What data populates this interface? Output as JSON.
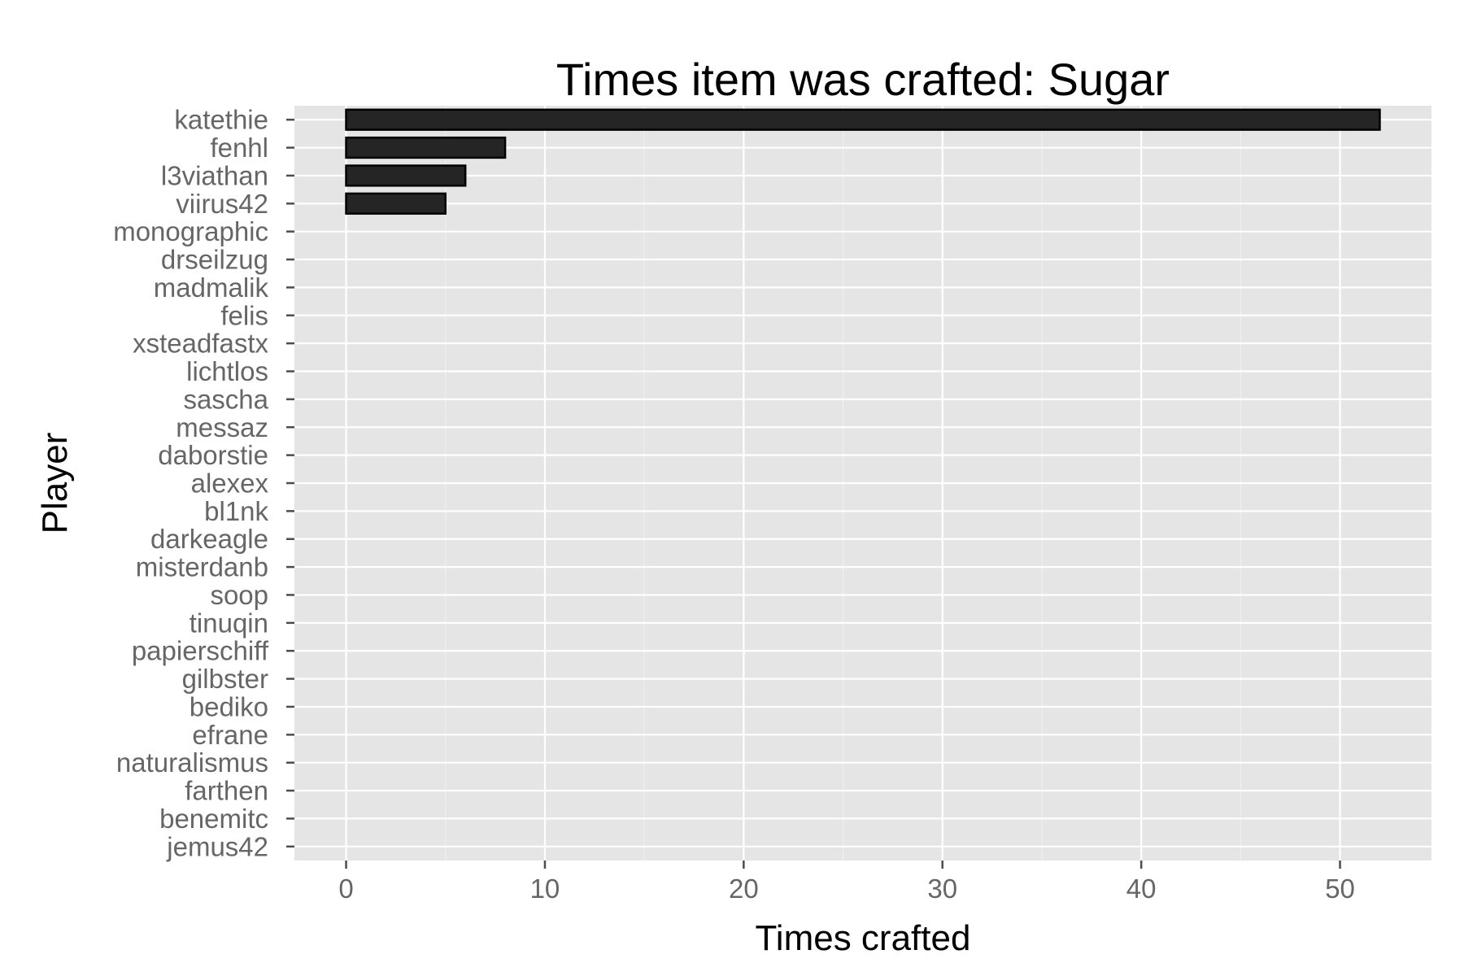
{
  "chart_data": {
    "type": "bar",
    "orientation": "horizontal",
    "title": "Times item was crafted: Sugar",
    "xlabel": "Times crafted",
    "ylabel": "Player",
    "xlim": [
      -2.6,
      54.6
    ],
    "xticks": [
      0,
      10,
      20,
      30,
      40,
      50
    ],
    "grid": true,
    "panel_background": "#e5e5e5",
    "bar_color": "#252525",
    "categories": [
      "katethie",
      "fenhl",
      "l3viathan",
      "viirus42",
      "monographic",
      "drseilzug",
      "madmalik",
      "felis",
      "xsteadfastx",
      "lichtlos",
      "sascha",
      "messaz",
      "daborstie",
      "alexex",
      "bl1nk",
      "darkeagle",
      "misterdanb",
      "soop",
      "tinuqin",
      "papierschiff",
      "gilbster",
      "bediko",
      "efrane",
      "naturalismus",
      "farthen",
      "benemitc",
      "jemus42"
    ],
    "values": [
      52,
      8,
      6,
      5,
      0,
      0,
      0,
      0,
      0,
      0,
      0,
      0,
      0,
      0,
      0,
      0,
      0,
      0,
      0,
      0,
      0,
      0,
      0,
      0,
      0,
      0,
      0
    ]
  }
}
